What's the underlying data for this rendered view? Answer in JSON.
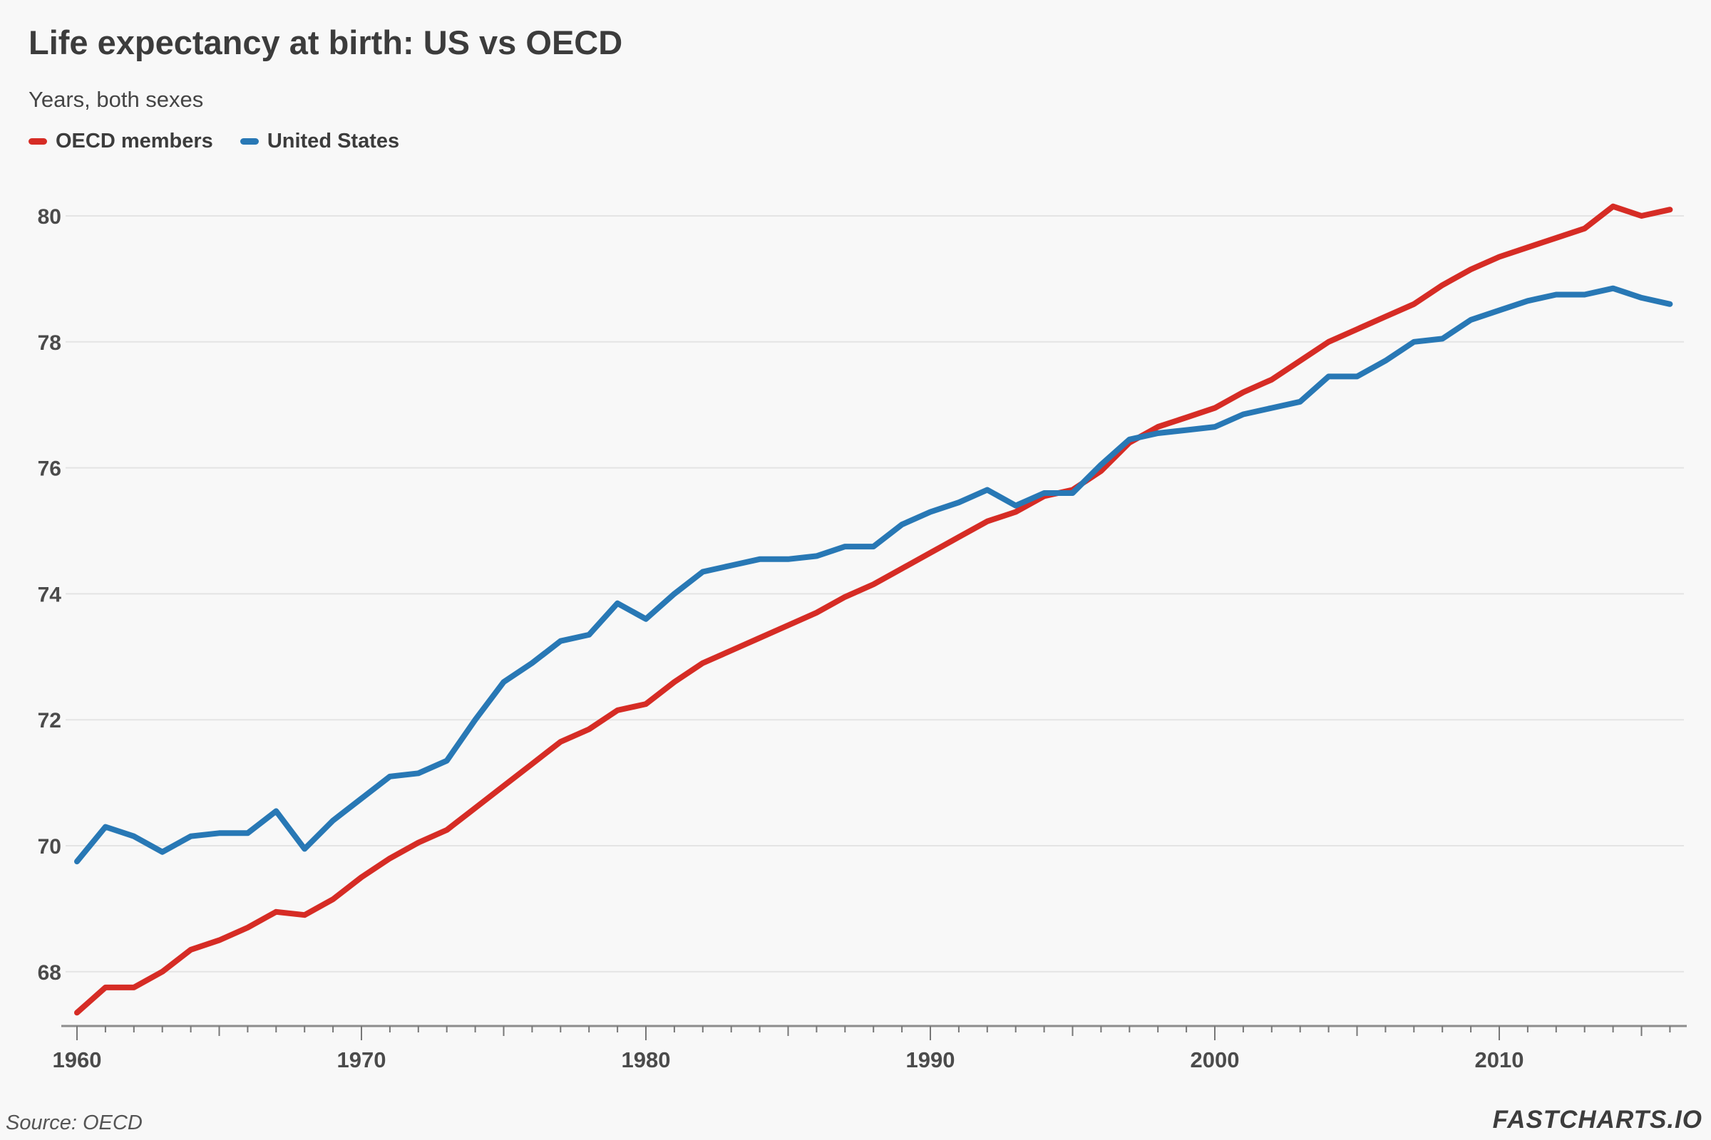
{
  "header": {
    "title": "Life expectancy at birth: US vs OECD",
    "subtitle": "Years, both sexes"
  },
  "legend": {
    "items": [
      {
        "label": "OECD members",
        "color": "#d62c25"
      },
      {
        "label": "United States",
        "color": "#2878b5"
      }
    ]
  },
  "footer": {
    "source": "Source: OECD",
    "brand": "FASTCHARTS.IO"
  },
  "colors": {
    "background": "#f8f8f8",
    "gridline": "#e4e4e4",
    "axis_line": "#8c8c8c",
    "tick": "#777777",
    "tick_label": "#4b4b4b",
    "oecd_red": "#d62c25",
    "us_blue": "#2878b5"
  },
  "chart_data": {
    "type": "line",
    "title": "Life expectancy at birth: US vs OECD",
    "subtitle": "Years, both sexes",
    "xlabel": "",
    "ylabel": "Years, both sexes",
    "grid": "horizontal",
    "legend_position": "top-left",
    "xlim": [
      1960,
      2016
    ],
    "ylim": [
      67.1,
      80.7
    ],
    "y_ticks": [
      68,
      70,
      72,
      74,
      76,
      78,
      80
    ],
    "x_ticks_major": [
      1960,
      1970,
      1980,
      1990,
      2000,
      2010
    ],
    "x": [
      1960,
      1961,
      1962,
      1963,
      1964,
      1965,
      1966,
      1967,
      1968,
      1969,
      1970,
      1971,
      1972,
      1973,
      1974,
      1975,
      1976,
      1977,
      1978,
      1979,
      1980,
      1981,
      1982,
      1983,
      1984,
      1985,
      1986,
      1987,
      1988,
      1989,
      1990,
      1991,
      1992,
      1993,
      1994,
      1995,
      1996,
      1997,
      1998,
      1999,
      2000,
      2001,
      2002,
      2003,
      2004,
      2005,
      2006,
      2007,
      2008,
      2009,
      2010,
      2011,
      2012,
      2013,
      2014,
      2015,
      2016
    ],
    "series": [
      {
        "name": "OECD members",
        "color": "#d62c25",
        "values": [
          67.35,
          67.75,
          67.75,
          68.0,
          68.35,
          68.5,
          68.7,
          68.95,
          68.9,
          69.15,
          69.5,
          69.8,
          70.05,
          70.25,
          70.6,
          70.95,
          71.3,
          71.65,
          71.85,
          72.15,
          72.25,
          72.6,
          72.9,
          73.1,
          73.3,
          73.5,
          73.7,
          73.95,
          74.15,
          74.4,
          74.65,
          74.9,
          75.15,
          75.3,
          75.55,
          75.65,
          75.95,
          76.4,
          76.65,
          76.8,
          76.95,
          77.2,
          77.4,
          77.7,
          78.0,
          78.2,
          78.4,
          78.6,
          78.9,
          79.15,
          79.35,
          79.5,
          79.65,
          79.8,
          80.15,
          80.0,
          80.1
        ]
      },
      {
        "name": "United States",
        "color": "#2878b5",
        "values": [
          69.75,
          70.3,
          70.15,
          69.9,
          70.15,
          70.2,
          70.2,
          70.55,
          69.95,
          70.4,
          70.75,
          71.1,
          71.15,
          71.35,
          72.0,
          72.6,
          72.9,
          73.25,
          73.35,
          73.85,
          73.6,
          74.0,
          74.35,
          74.45,
          74.55,
          74.55,
          74.6,
          74.75,
          74.75,
          75.1,
          75.3,
          75.45,
          75.65,
          75.4,
          75.6,
          75.6,
          76.05,
          76.45,
          76.55,
          76.6,
          76.65,
          76.85,
          76.95,
          77.05,
          77.45,
          77.45,
          77.7,
          78.0,
          78.05,
          78.35,
          78.5,
          78.65,
          78.75,
          78.75,
          78.85,
          78.7,
          78.6
        ]
      }
    ]
  }
}
